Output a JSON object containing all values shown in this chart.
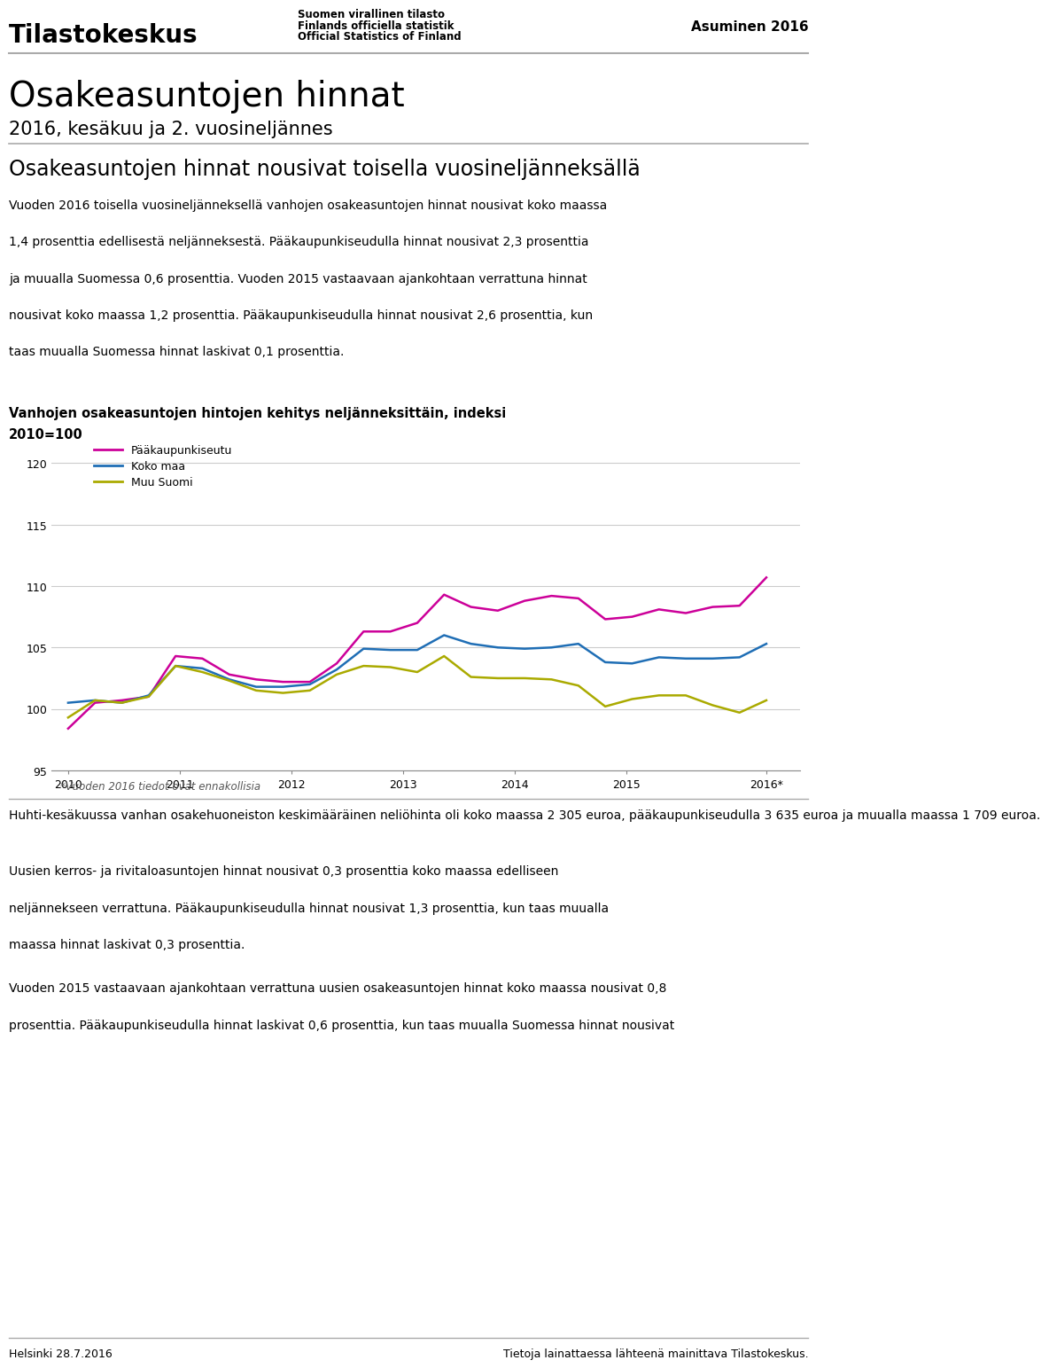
{
  "title_main": "Osakeasuntojen hinnat",
  "title_sub": "2016, kesäkuu ja 2. vuosineljännes",
  "header_right": "Asuminen 2016",
  "section_heading": "Osakeasuntojen hinnat nousivat toisella vuosineljänneksällä",
  "chart_title_line1": "Vanhojen osakeasuntojen hintojen kehitys neljänneksittäin, indeksi",
  "chart_title_line2": "2010=100",
  "footnote": "*Vuoden 2016 tiedot ovat ennakollisia",
  "body_text2": "Huhti-kesäkuussa vanhan osakehuoneiston keskimääräinen neliöhinta oli koko maassa 2 305 euroa, pääkaupunkiseudulla 3 635 euroa ja muualla maassa 1 709 euroa.",
  "footer_left": "Helsinki 28.7.2016",
  "footer_right": "Tietoja lainattaessa lähteenä mainittava Tilastokeskus.",
  "legend_labels": [
    "Pääkaupunkiseutu",
    "Koko maa",
    "Muu Suomi"
  ],
  "line_colors": [
    "#cc0099",
    "#1f6eb5",
    "#aaaa00"
  ],
  "ylim": [
    95,
    122
  ],
  "yticks": [
    95,
    100,
    105,
    110,
    115,
    120
  ],
  "x_labels": [
    "2010",
    "2011",
    "2012",
    "2013",
    "2014",
    "2015",
    "2016*"
  ],
  "paakaupunkiseutu": [
    98.4,
    100.5,
    100.7,
    101.0,
    104.3,
    104.1,
    102.8,
    102.4,
    102.2,
    102.2,
    103.7,
    106.3,
    106.3,
    107.0,
    109.3,
    108.3,
    108.0,
    108.8,
    109.2,
    109.0,
    107.3,
    107.5,
    108.1,
    107.8,
    108.3,
    108.4,
    110.7
  ],
  "koko_maa": [
    100.5,
    100.7,
    100.5,
    101.1,
    103.5,
    103.3,
    102.4,
    101.8,
    101.8,
    102.0,
    103.2,
    104.9,
    104.8,
    104.8,
    106.0,
    105.3,
    105.0,
    104.9,
    105.0,
    105.3,
    103.8,
    103.7,
    104.2,
    104.1,
    104.1,
    104.2,
    105.3
  ],
  "muu_suomi": [
    99.3,
    100.7,
    100.5,
    101.0,
    103.5,
    103.0,
    102.3,
    101.5,
    101.3,
    101.5,
    102.8,
    103.5,
    103.4,
    103.0,
    104.3,
    102.6,
    102.5,
    102.5,
    102.4,
    101.9,
    100.2,
    100.8,
    101.1,
    101.1,
    100.3,
    99.7,
    100.7
  ],
  "background_color": "#ffffff",
  "grid_color": "#cccccc",
  "text_color": "#000000",
  "separator_color": "#aaaaaa"
}
